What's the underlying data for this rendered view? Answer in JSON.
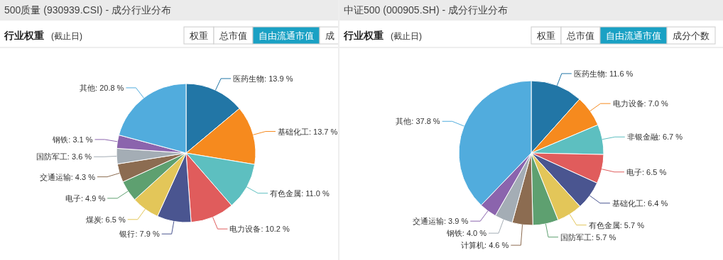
{
  "chart_data": [
    {
      "type": "pie",
      "title": "500质量 (930939.CSI) - 成分行业分布",
      "subtitle": "行业权重",
      "annotations": [
        "(截止日)",
        "权重",
        "总市值",
        "自由流通市值",
        "成"
      ],
      "categories": [
        "医药生物",
        "基础化工",
        "有色金属",
        "电力设备",
        "银行",
        "煤炭",
        "电子",
        "交通运输",
        "国防军工",
        "钢铁",
        "其他"
      ],
      "values": [
        13.9,
        13.7,
        11.0,
        10.2,
        7.9,
        6.5,
        4.9,
        4.3,
        3.6,
        3.1,
        20.8
      ],
      "value_labels": [
        "13.9 %",
        "13.7 %",
        "11.0 %",
        "10.2 %",
        "7.9 %",
        "6.5 %",
        "4.9 %",
        "4.3 %",
        "3.6 %",
        "3.1 %",
        "20.8 %"
      ],
      "colors": [
        "#2276a6",
        "#f68a1e",
        "#5dbfc0",
        "#e05c5c",
        "#4a5590",
        "#e3c659",
        "#5ea070",
        "#8c6c51",
        "#a4adb5",
        "#8b64ad",
        "#51acdd"
      ],
      "data_labels": true
    },
    {
      "type": "pie",
      "title": "中证500 (000905.SH) - 成分行业分布",
      "subtitle": "行业权重",
      "annotations": [
        "(截止日)",
        "权重",
        "总市值",
        "自由流通市值",
        "成分个数"
      ],
      "categories": [
        "医药生物",
        "电力设备",
        "非银金融",
        "电子",
        "基础化工",
        "有色金属",
        "国防军工",
        "计算机",
        "钢铁",
        "交通运输",
        "其他"
      ],
      "values": [
        11.6,
        7.0,
        6.7,
        6.5,
        6.4,
        5.7,
        5.7,
        4.6,
        4.0,
        3.9,
        37.8
      ],
      "value_labels": [
        "11.6 %",
        "7.0 %",
        "6.7 %",
        "6.5 %",
        "6.4 %",
        "5.7 %",
        "5.7 %",
        "4.6 %",
        "4.0 %",
        "3.9 %",
        "37.8 %"
      ],
      "colors": [
        "#2276a6",
        "#f68a1e",
        "#5dbfc0",
        "#e05c5c",
        "#4a5590",
        "#e3c659",
        "#5ea070",
        "#8c6c51",
        "#a4adb5",
        "#8b64ad",
        "#51acdd"
      ],
      "data_labels": true
    }
  ]
}
